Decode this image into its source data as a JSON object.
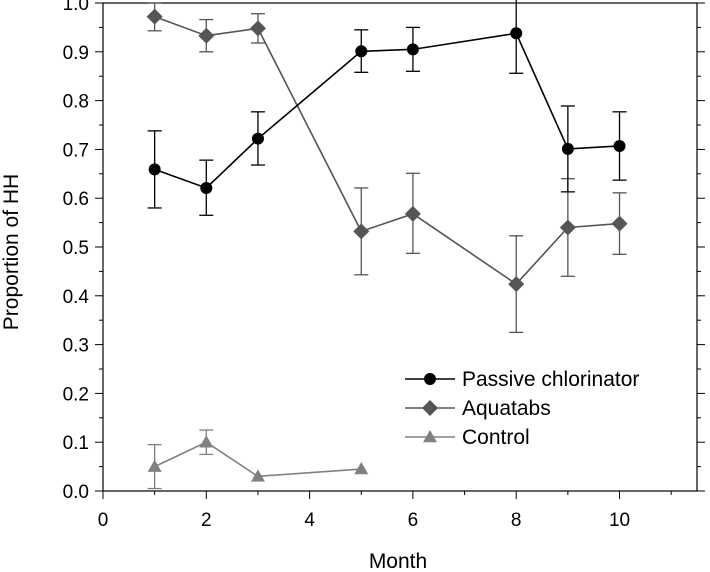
{
  "chart_data": {
    "type": "line",
    "title": "",
    "xlabel": "Month",
    "ylabel": "Proportion of HH",
    "xlim": [
      0,
      11.5
    ],
    "ylim": [
      0,
      1.0
    ],
    "x_ticks": [
      0,
      2,
      4,
      6,
      8,
      10
    ],
    "x_tick_labels": [
      "0",
      "2",
      "4",
      "6",
      "8",
      "10"
    ],
    "y_ticks": [
      0,
      0.1,
      0.2,
      0.3,
      0.4,
      0.5,
      0.6,
      0.7,
      0.8,
      0.9,
      1.0
    ],
    "y_tick_labels": [
      "0.0",
      "0.1",
      "0.2",
      "0.3",
      "0.4",
      "0.5",
      "0.6",
      "0.7",
      "0.8",
      "0.9",
      "1.0"
    ],
    "grid": false,
    "legend_position": "bottom-right",
    "series": [
      {
        "name": "Passive chlorinator",
        "marker": "circle",
        "color": "#000000",
        "x": [
          1,
          2,
          3,
          5,
          6,
          8,
          9,
          10
        ],
        "values": [
          0.659,
          0.621,
          0.722,
          0.901,
          0.905,
          0.938,
          0.701,
          0.707
        ],
        "error_low": [
          0.58,
          0.565,
          0.668,
          0.858,
          0.86,
          0.856,
          0.613,
          0.637
        ],
        "error_high": [
          0.738,
          0.678,
          0.777,
          0.945,
          0.95,
          1.02,
          0.789,
          0.777
        ]
      },
      {
        "name": "Aquatabs",
        "marker": "diamond",
        "color": "#555555",
        "x": [
          1,
          2,
          3,
          5,
          6,
          8,
          9,
          10
        ],
        "values": [
          0.972,
          0.933,
          0.948,
          0.532,
          0.568,
          0.424,
          0.54,
          0.548
        ],
        "error_low": [
          0.943,
          0.9,
          0.918,
          0.443,
          0.487,
          0.325,
          0.44,
          0.485
        ],
        "error_high": [
          1.0,
          0.966,
          0.978,
          0.621,
          0.651,
          0.523,
          0.64,
          0.611
        ]
      },
      {
        "name": "Control",
        "marker": "triangle",
        "color": "#808080",
        "x": [
          1,
          2,
          3,
          5
        ],
        "values": [
          0.05,
          0.1,
          0.03,
          0.045
        ],
        "error_low": [
          0.005,
          0.075,
          null,
          null
        ],
        "error_high": [
          0.095,
          0.125,
          null,
          null
        ]
      }
    ]
  }
}
